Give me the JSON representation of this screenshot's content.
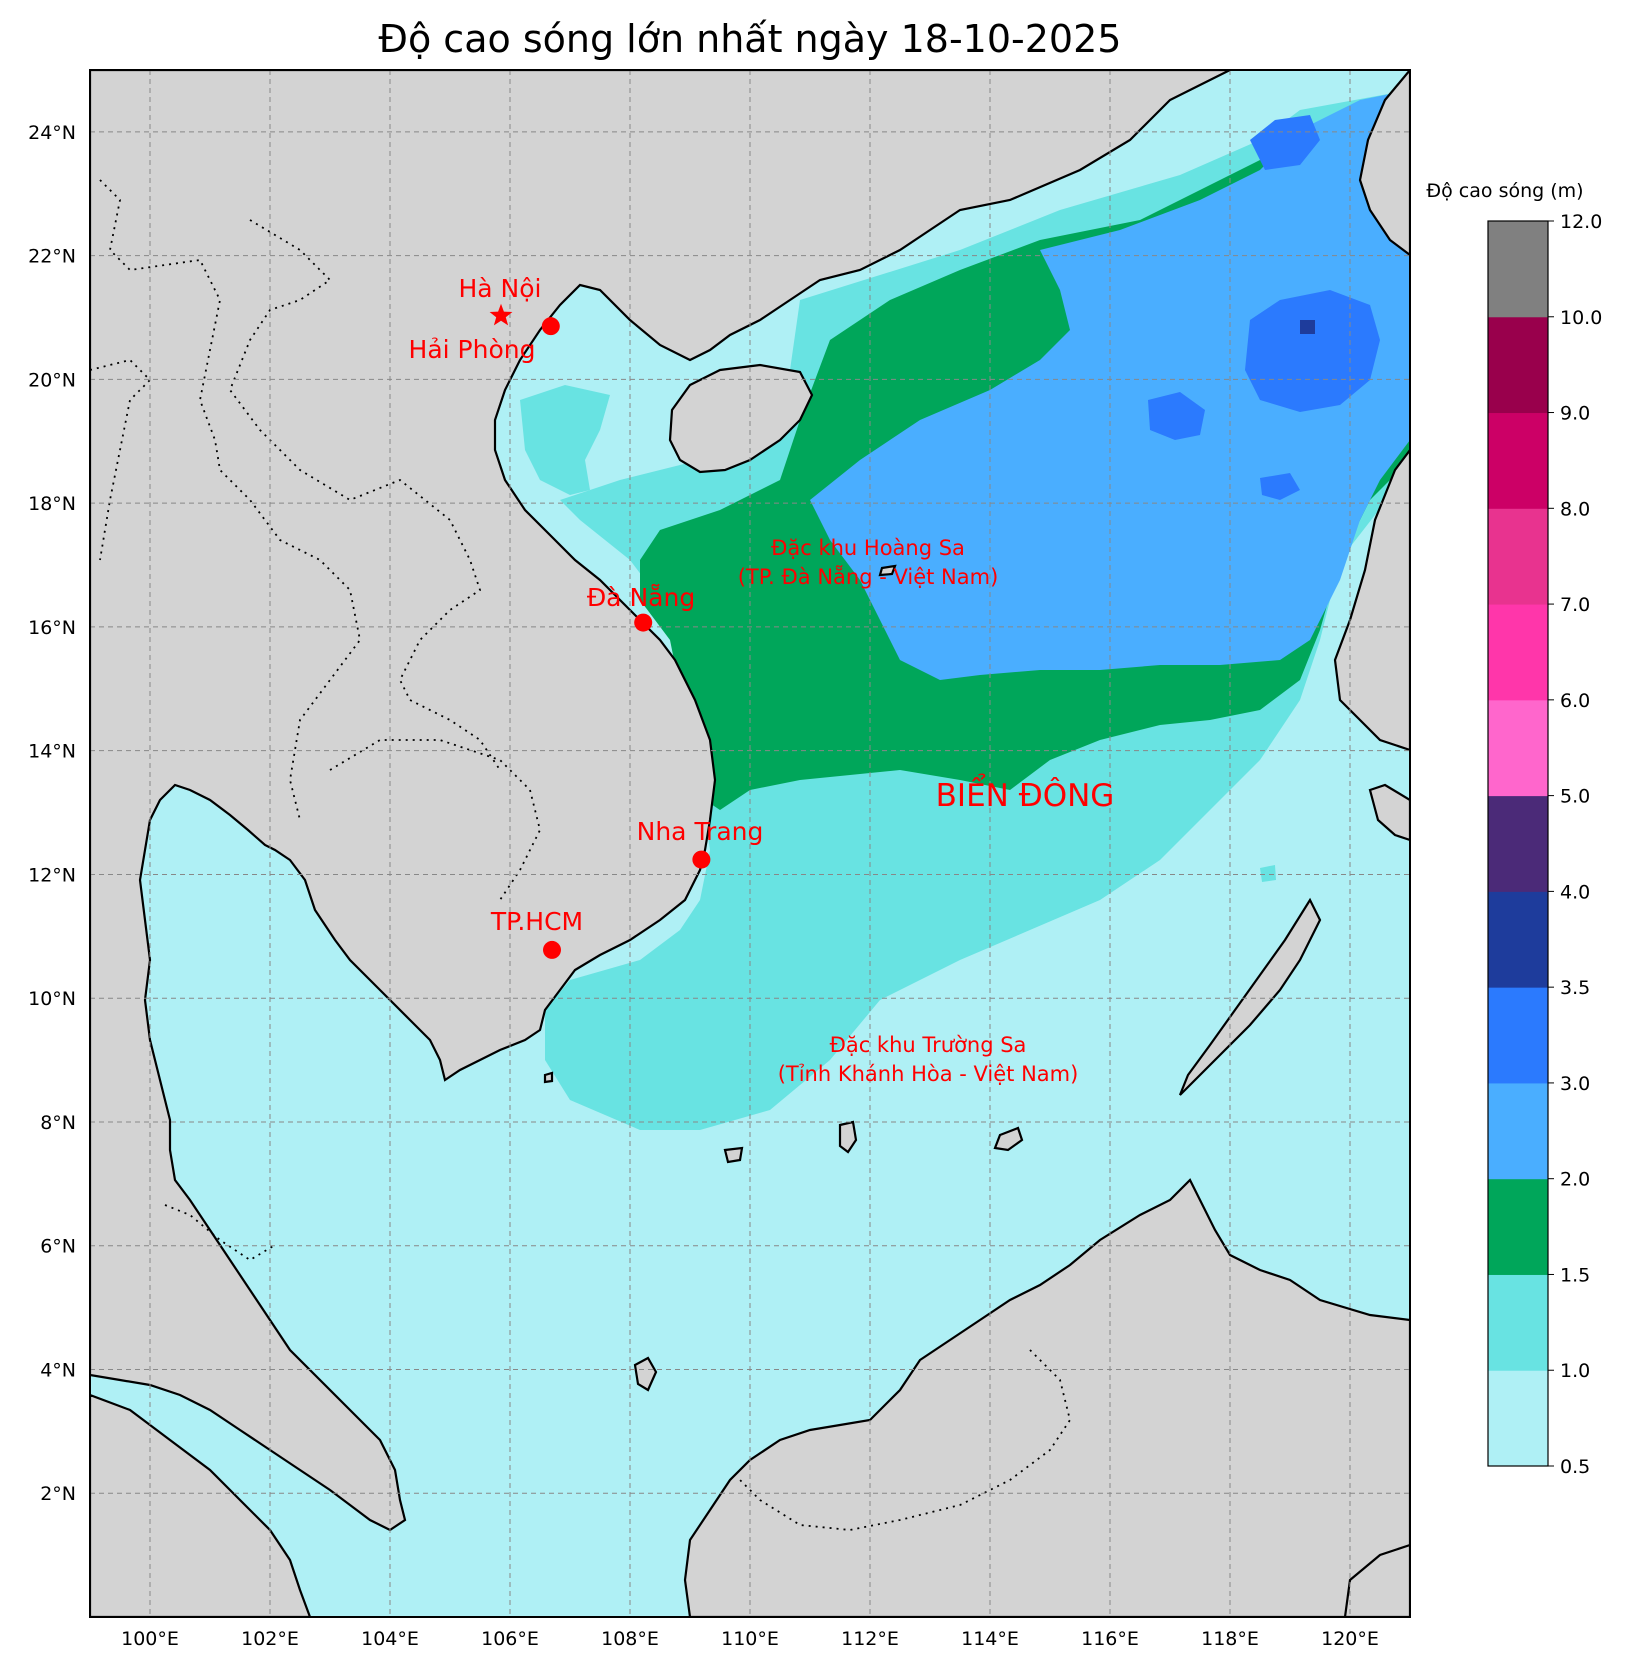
{
  "title": "Độ cao sóng lớn nhất ngày 18-10-2025",
  "map": {
    "lon_range": [
      99,
      121
    ],
    "lat_range": [
      0,
      25
    ],
    "lon_ticks": [
      "100°E",
      "102°E",
      "104°E",
      "106°E",
      "108°E",
      "110°E",
      "112°E",
      "114°E",
      "116°E",
      "118°E",
      "120°E"
    ],
    "lat_ticks": [
      "2°N",
      "4°N",
      "6°N",
      "8°N",
      "10°N",
      "12°N",
      "14°N",
      "16°N",
      "18°N",
      "20°N",
      "22°N",
      "24°N"
    ],
    "grid": true,
    "land_color": "#d3d3d3"
  },
  "places": [
    {
      "name": "Hà Nội",
      "marker": "star",
      "lon": 105.85,
      "lat": 21.03
    },
    {
      "name": "Hải Phòng",
      "marker": "circle",
      "lon": 106.68,
      "lat": 20.86
    },
    {
      "name": "Đà Nẵng",
      "marker": "circle",
      "lon": 108.22,
      "lat": 16.07
    },
    {
      "name": "Nha Trang",
      "marker": "circle",
      "lon": 109.19,
      "lat": 12.24
    },
    {
      "name": "TP.HCM",
      "marker": "circle",
      "lon": 106.7,
      "lat": 10.78
    }
  ],
  "regions": {
    "hoang_sa_line1": "Đặc khu Hoàng Sa",
    "hoang_sa_line2": "(TP. Đà Nẵng - Việt Nam)",
    "truong_sa_line1": "Đặc khu Trường Sa",
    "truong_sa_line2": "(Tỉnh Khánh Hòa - Việt Nam)",
    "sea_name": "BIỂN ĐÔNG"
  },
  "colorbar": {
    "title": "Độ cao sóng (m)",
    "levels": [
      "0.5",
      "1.0",
      "1.5",
      "2.0",
      "3.0",
      "3.5",
      "4.0",
      "5.0",
      "6.0",
      "7.0",
      "8.0",
      "9.0",
      "10.0",
      "12.0"
    ],
    "colors": [
      "#aff0f5",
      "#68e3e2",
      "#00a65a",
      "#4aaeff",
      "#2b7afe",
      "#1e3c9c",
      "#4b2a78",
      "#ff66cc",
      "#ff36aa",
      "#e8338f",
      "#cc0066",
      "#99004c",
      "#808080"
    ]
  },
  "colors": {
    "label_red": "#ff0000",
    "wave_0_5_1_0": "#aff0f5",
    "wave_1_0_1_5": "#68e3e2",
    "wave_1_5_2_0": "#00a65a",
    "wave_2_0_3_0": "#4aaeff",
    "wave_3_0_3_5": "#2b7afe",
    "wave_3_5_4_0": "#1e3c9c"
  }
}
